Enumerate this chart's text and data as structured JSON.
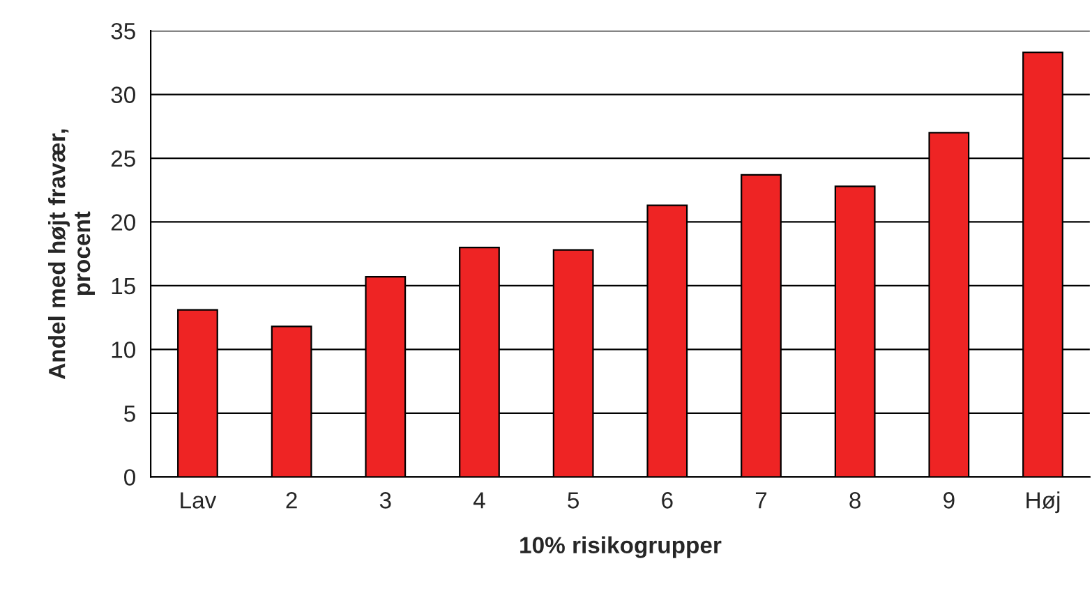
{
  "chart_data": {
    "type": "bar",
    "xlabel": "10% risikogrupper",
    "ylabel": "Andel med højt fravær,\nprocent",
    "categories": [
      "Lav",
      "2",
      "3",
      "4",
      "5",
      "6",
      "7",
      "8",
      "9",
      "Høj"
    ],
    "values": [
      13.1,
      11.8,
      15.7,
      18.0,
      17.8,
      21.3,
      23.7,
      22.8,
      27.0,
      33.3
    ],
    "color": "#ee2424",
    "ylim": [
      0,
      35
    ],
    "yticks": [
      0,
      5,
      10,
      15,
      20,
      25,
      30,
      35
    ],
    "grid": "y",
    "legend": false
  }
}
